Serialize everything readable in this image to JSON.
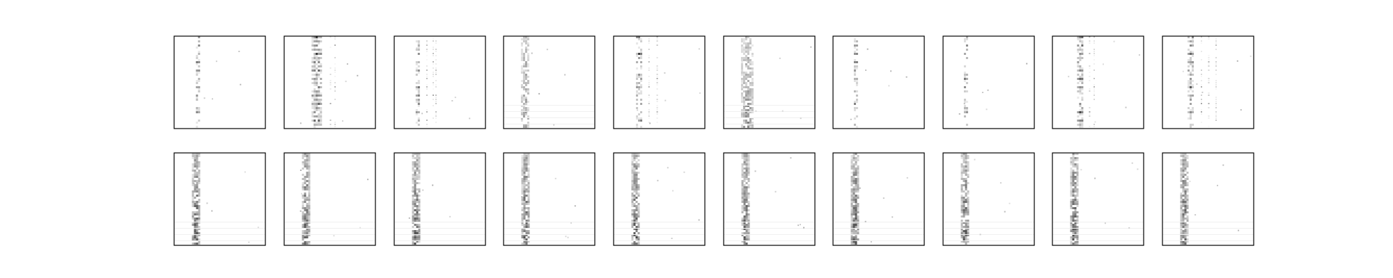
{
  "chart_data": {
    "type": "heatmap",
    "grid": {
      "rows": 2,
      "columns": 10
    },
    "colormap": [
      "#ffffff",
      "#000000"
    ],
    "axes_ticks": "none",
    "panels": [
      {
        "row": 0,
        "col": 0,
        "pattern": "dotted-column",
        "band_x": 0.25,
        "band_width": 0.02,
        "density": 0.55,
        "intensity": 0.85,
        "extra_columns": []
      },
      {
        "row": 0,
        "col": 1,
        "pattern": "dotted-column",
        "band_x": 0.35,
        "band_width": 0.1,
        "density": 0.85,
        "intensity": 0.9,
        "extra_columns": [
          0.5,
          0.55
        ]
      },
      {
        "row": 0,
        "col": 2,
        "pattern": "dotted-column",
        "band_x": 0.25,
        "band_width": 0.03,
        "density": 0.6,
        "intensity": 0.85,
        "extra_columns": [
          0.35,
          0.42,
          0.45
        ]
      },
      {
        "row": 0,
        "col": 3,
        "pattern": "diffuse-band",
        "band_x": 0.23,
        "band_width": 0.08,
        "density": 0.6,
        "intensity": 0.55,
        "extra_columns": []
      },
      {
        "row": 0,
        "col": 4,
        "pattern": "dotted-column",
        "band_x": 0.27,
        "band_width": 0.05,
        "density": 0.65,
        "intensity": 0.85,
        "extra_columns": [
          0.38,
          0.47
        ]
      },
      {
        "row": 0,
        "col": 5,
        "pattern": "diffuse-band",
        "band_x": 0.25,
        "band_width": 0.12,
        "density": 0.7,
        "intensity": 0.6,
        "extra_columns": []
      },
      {
        "row": 0,
        "col": 6,
        "pattern": "dotted-column",
        "band_x": 0.24,
        "band_width": 0.02,
        "density": 0.55,
        "intensity": 0.8,
        "extra_columns": []
      },
      {
        "row": 0,
        "col": 7,
        "pattern": "dotted-column",
        "band_x": 0.24,
        "band_width": 0.015,
        "density": 0.5,
        "intensity": 0.85,
        "extra_columns": []
      },
      {
        "row": 0,
        "col": 8,
        "pattern": "dotted-column",
        "band_x": 0.3,
        "band_width": 0.06,
        "density": 0.75,
        "intensity": 0.85,
        "extra_columns": [
          0.4,
          0.45
        ]
      },
      {
        "row": 0,
        "col": 9,
        "pattern": "dotted-column",
        "band_x": 0.3,
        "band_width": 0.05,
        "density": 0.6,
        "intensity": 0.8,
        "extra_columns": [
          0.42,
          0.5,
          0.58
        ]
      },
      {
        "row": 1,
        "col": 0,
        "pattern": "dense-band",
        "band_x": 0.23,
        "band_width": 0.07,
        "density": 0.8,
        "intensity": 0.9,
        "extra_columns": []
      },
      {
        "row": 1,
        "col": 1,
        "pattern": "dense-band",
        "band_x": 0.23,
        "band_width": 0.07,
        "density": 0.8,
        "intensity": 0.9,
        "extra_columns": []
      },
      {
        "row": 1,
        "col": 2,
        "pattern": "dense-band",
        "band_x": 0.23,
        "band_width": 0.07,
        "density": 0.8,
        "intensity": 0.9,
        "extra_columns": []
      },
      {
        "row": 1,
        "col": 3,
        "pattern": "dense-band",
        "band_x": 0.23,
        "band_width": 0.07,
        "density": 0.8,
        "intensity": 0.9,
        "extra_columns": []
      },
      {
        "row": 1,
        "col": 4,
        "pattern": "dense-band",
        "band_x": 0.23,
        "band_width": 0.07,
        "density": 0.8,
        "intensity": 0.9,
        "extra_columns": []
      },
      {
        "row": 1,
        "col": 5,
        "pattern": "dense-band",
        "band_x": 0.23,
        "band_width": 0.07,
        "density": 0.8,
        "intensity": 0.9,
        "extra_columns": []
      },
      {
        "row": 1,
        "col": 6,
        "pattern": "dense-band",
        "band_x": 0.23,
        "band_width": 0.07,
        "density": 0.8,
        "intensity": 0.9,
        "extra_columns": []
      },
      {
        "row": 1,
        "col": 7,
        "pattern": "dense-band",
        "band_x": 0.23,
        "band_width": 0.07,
        "density": 0.8,
        "intensity": 0.9,
        "extra_columns": []
      },
      {
        "row": 1,
        "col": 8,
        "pattern": "dense-band",
        "band_x": 0.23,
        "band_width": 0.07,
        "density": 0.8,
        "intensity": 0.9,
        "extra_columns": []
      },
      {
        "row": 1,
        "col": 9,
        "pattern": "dense-band",
        "band_x": 0.23,
        "band_width": 0.07,
        "density": 0.8,
        "intensity": 0.9,
        "extra_columns": []
      }
    ]
  }
}
